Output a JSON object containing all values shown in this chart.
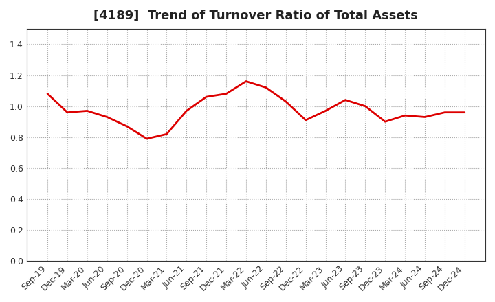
{
  "title": "[4189]  Trend of Turnover Ratio of Total Assets",
  "x_labels": [
    "Sep-19",
    "Dec-19",
    "Mar-20",
    "Jun-20",
    "Sep-20",
    "Dec-20",
    "Mar-21",
    "Jun-21",
    "Sep-21",
    "Dec-21",
    "Mar-22",
    "Jun-22",
    "Sep-22",
    "Dec-22",
    "Mar-23",
    "Jun-23",
    "Sep-23",
    "Dec-23",
    "Mar-24",
    "Jun-24",
    "Sep-24",
    "Dec-24"
  ],
  "y_values": [
    1.08,
    0.96,
    0.97,
    0.93,
    0.87,
    0.79,
    0.82,
    0.97,
    1.06,
    1.08,
    1.16,
    1.12,
    1.03,
    0.91,
    0.97,
    1.04,
    1.0,
    0.9,
    0.94,
    0.93,
    0.96,
    0.96
  ],
  "line_color": "#dd0000",
  "line_width": 2.0,
  "ylim": [
    0.0,
    1.5
  ],
  "yticks": [
    0.0,
    0.2,
    0.4,
    0.6,
    0.8,
    1.0,
    1.2,
    1.4
  ],
  "background_color": "#ffffff",
  "plot_bg_color": "#ffffff",
  "grid_color": "#aaaaaa",
  "title_fontsize": 13,
  "tick_fontsize": 9
}
